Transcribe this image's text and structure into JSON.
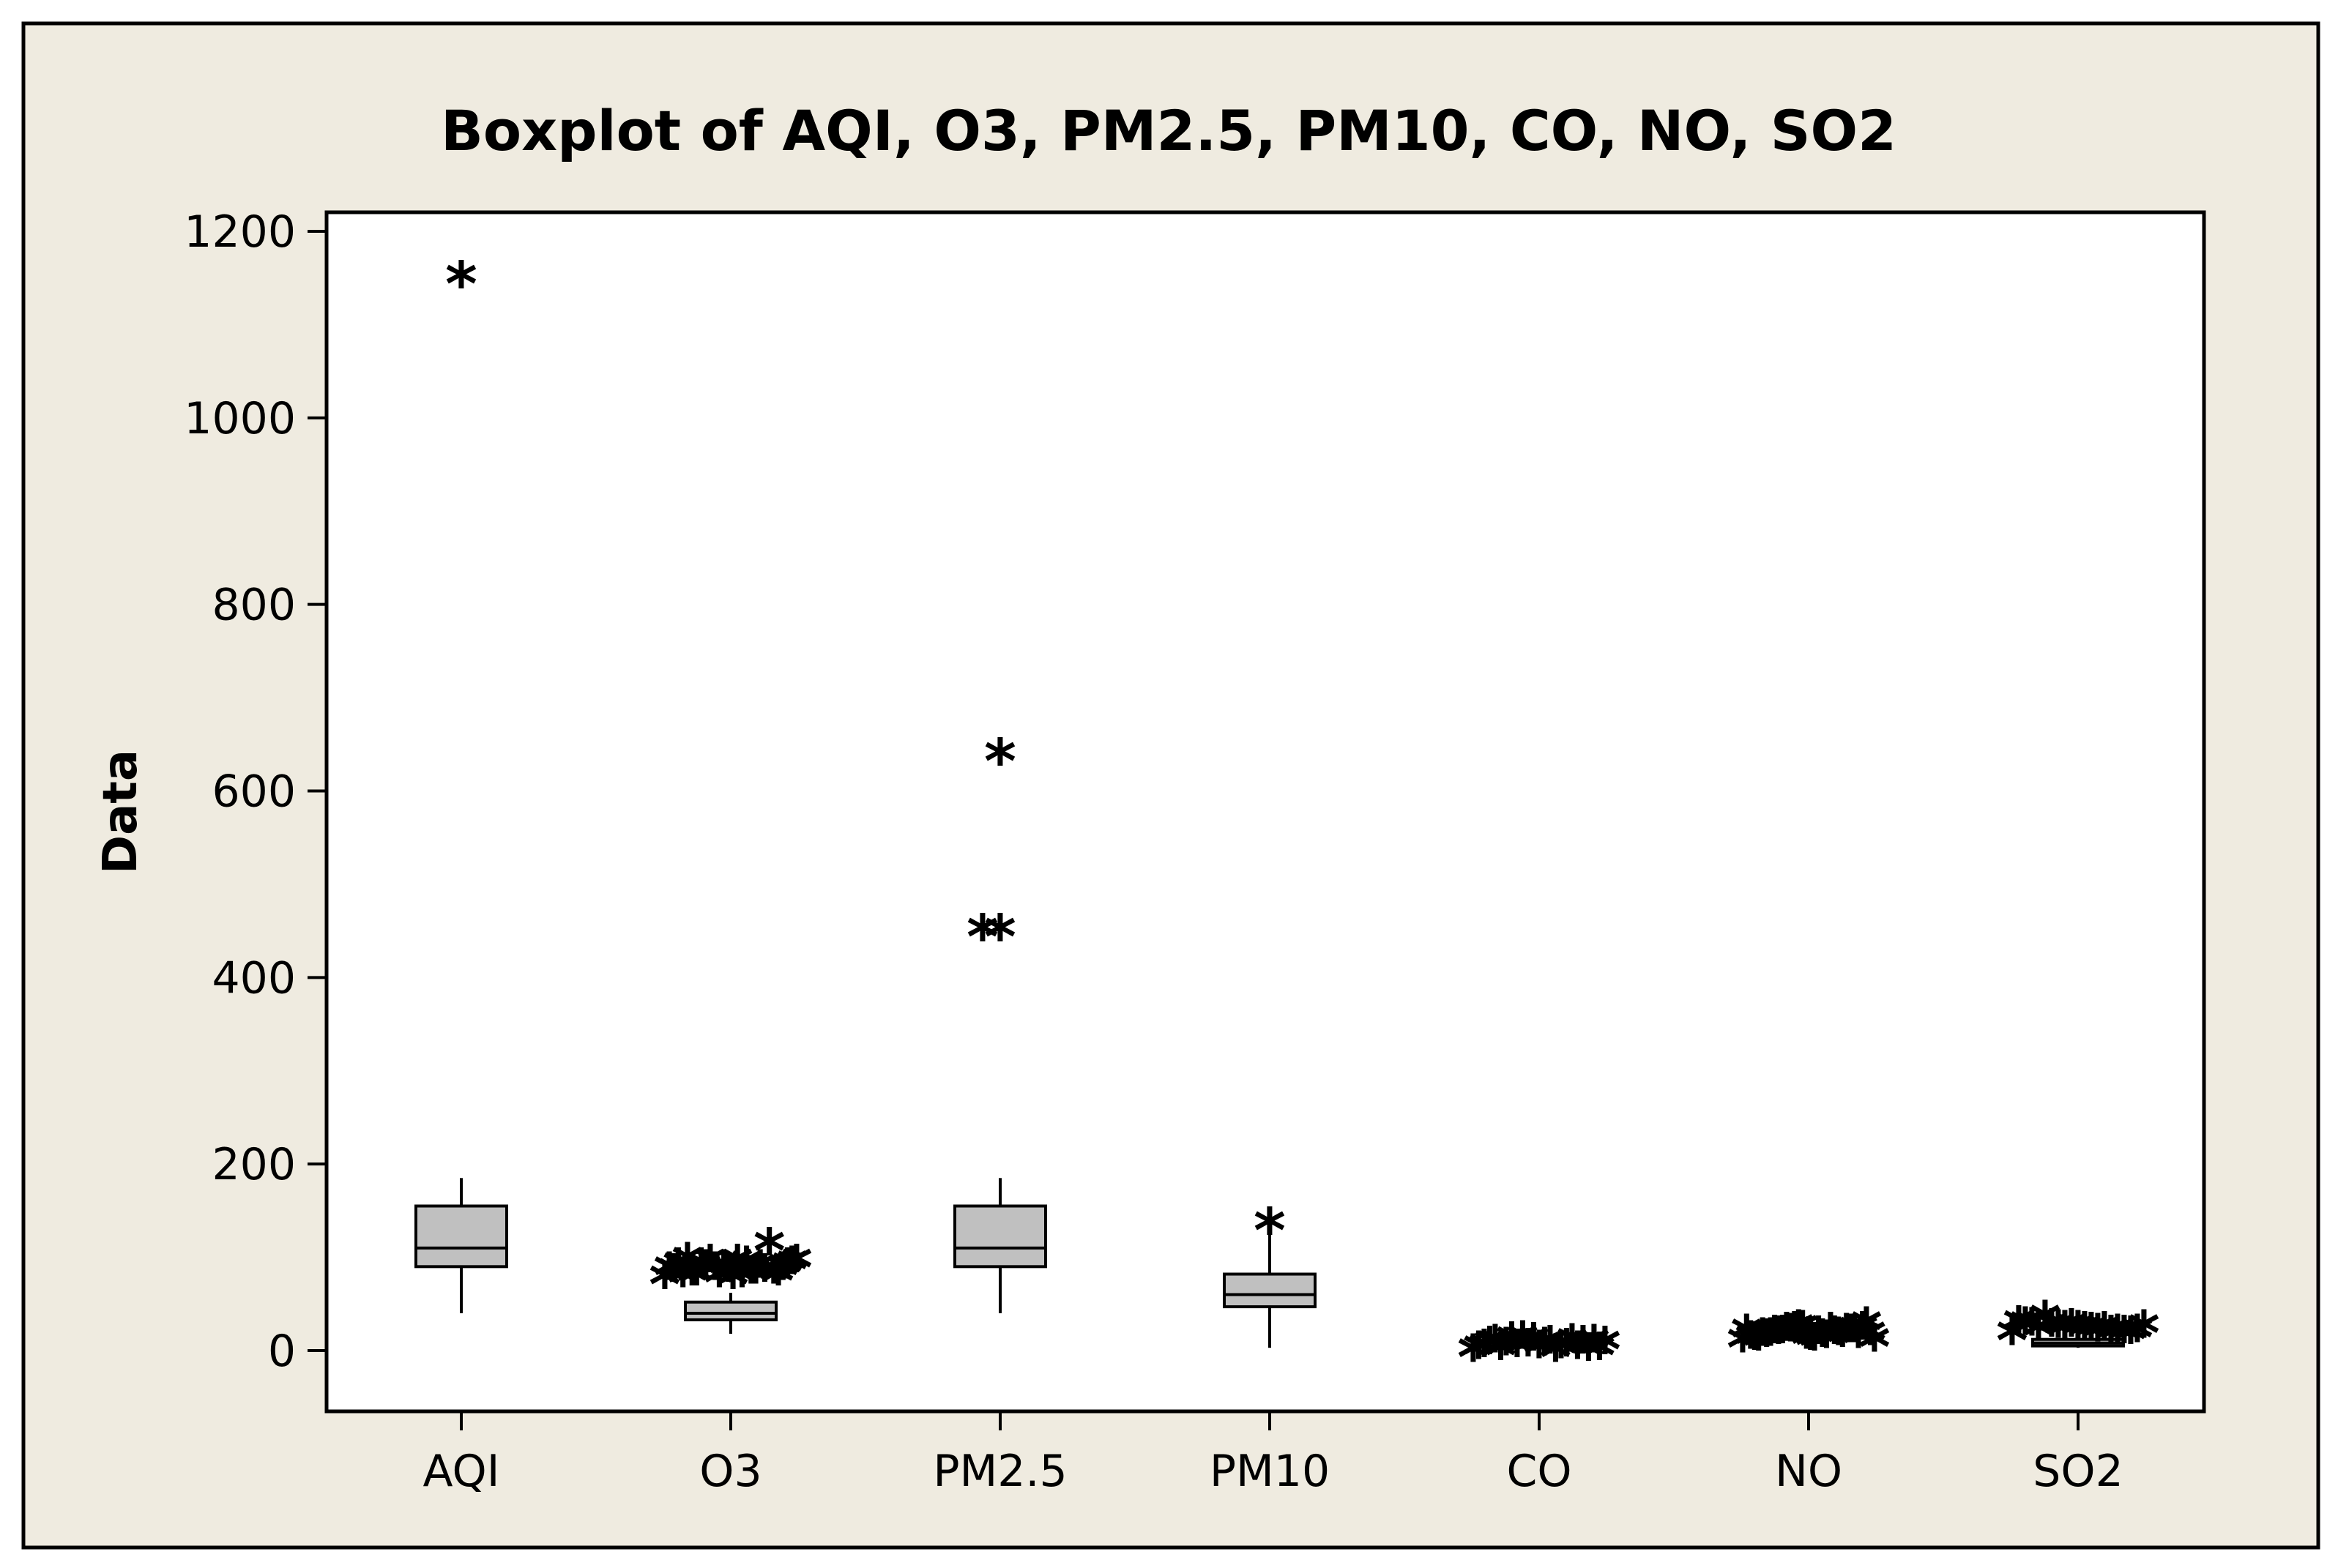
{
  "colors": {
    "figure_background": "#efebe0",
    "plot_background": "#ffffff",
    "box_fill": "#c0c0c0",
    "line": "#000000"
  },
  "chart_data": {
    "type": "boxplot",
    "title": "Boxplot of AQI, O3, PM2.5, PM10, CO, NO, SO2",
    "xlabel": "",
    "ylabel": "Data",
    "ylim": [
      -70,
      1230
    ],
    "yticks": [
      0,
      200,
      400,
      600,
      800,
      1000,
      1200
    ],
    "ytick_labels": [
      "0",
      "200",
      "400",
      "600",
      "800",
      "1000",
      "1200"
    ],
    "outlier_marker": "*",
    "categories": [
      "AQI",
      "O3",
      "PM2.5",
      "PM10",
      "CO",
      "NO",
      "SO2"
    ],
    "series": [
      {
        "name": "AQI",
        "whisker_low": 40,
        "q1": 90,
        "median": 110,
        "q3": 155,
        "whisker_high": 185,
        "outliers": [
          1155
        ]
      },
      {
        "name": "O3",
        "whisker_low": 18,
        "q1": 33,
        "median": 40,
        "q3": 52,
        "whisker_high": 62,
        "outliers": [
          82,
          86,
          90,
          94,
          98,
          102,
          84,
          88,
          92,
          96,
          100,
          84,
          88,
          92,
          96,
          82,
          90,
          100,
          86,
          94,
          88,
          96,
          84,
          92,
          98,
          86,
          90,
          94,
          100,
          118
        ]
      },
      {
        "name": "PM2.5",
        "whisker_low": 40,
        "q1": 90,
        "median": 110,
        "q3": 155,
        "whisker_high": 185,
        "outliers": [
          455,
          455,
          643
        ]
      },
      {
        "name": "PM10",
        "whisker_low": 3,
        "q1": 47,
        "median": 60,
        "q3": 82,
        "whisker_high": 125,
        "outliers": [
          140
        ]
      },
      {
        "name": "CO",
        "whisker_low": 0,
        "q1": 5,
        "median": 7,
        "q3": 10,
        "whisker_high": 12,
        "outliers": [
          4,
          8,
          12,
          16,
          6,
          10,
          14,
          18,
          5,
          9,
          13,
          17,
          7,
          11,
          15,
          6,
          10,
          14,
          8,
          12,
          4,
          9,
          13,
          7,
          11
        ]
      },
      {
        "name": "NO",
        "whisker_low": 8,
        "q1": 12,
        "median": 15,
        "q3": 18,
        "whisker_high": 22,
        "outliers": [
          14,
          17,
          20,
          23,
          26,
          29,
          16,
          19,
          22,
          25,
          28,
          15,
          18,
          21,
          24,
          27,
          30,
          17,
          20,
          23,
          26,
          19,
          22,
          25,
          16,
          21,
          24,
          28,
          18,
          23,
          27,
          20,
          25,
          33
        ]
      },
      {
        "name": "SO2",
        "whisker_low": 3,
        "q1": 5,
        "median": 8,
        "q3": 12,
        "whisker_high": 18,
        "outliers": [
          22,
          25,
          28,
          31,
          34,
          24,
          27,
          30,
          33,
          23,
          26,
          29,
          32,
          25,
          28,
          31,
          27,
          30,
          24,
          29,
          40
        ]
      }
    ]
  }
}
